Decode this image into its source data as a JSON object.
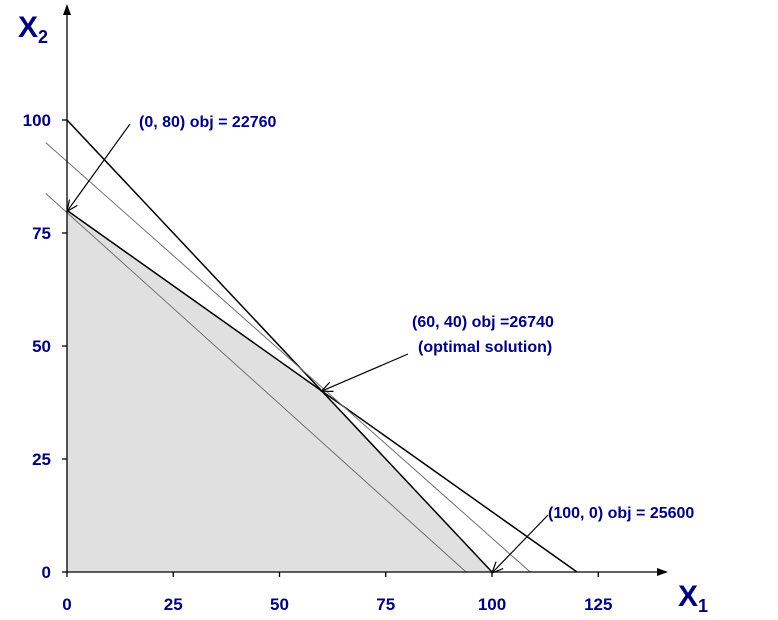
{
  "chart_data": {
    "type": "line",
    "title": "",
    "xlabel": "X",
    "xlabel_sub": "1",
    "ylabel": "X",
    "ylabel_sub": "2",
    "xlim": [
      0,
      125
    ],
    "ylim": [
      0,
      125
    ],
    "x_ticks": [
      "0",
      "25",
      "50",
      "75",
      "100",
      "125"
    ],
    "y_ticks": [
      "0",
      "25",
      "50",
      "75",
      "100"
    ],
    "feasible_region": [
      [
        0,
        0
      ],
      [
        0,
        80
      ],
      [
        60,
        40
      ],
      [
        100,
        0
      ]
    ],
    "constraint_lines": [
      {
        "points": [
          [
            0,
            100
          ],
          [
            100,
            0
          ]
        ]
      },
      {
        "points": [
          [
            0,
            80
          ],
          [
            120,
            0
          ]
        ]
      }
    ],
    "objective_lines": [
      {
        "points": [
          [
            -5,
            83.75
          ],
          [
            93.9,
            0
          ]
        ]
      },
      {
        "points": [
          [
            -5,
            95
          ],
          [
            109,
            0
          ]
        ]
      }
    ],
    "annotations": [
      {
        "text": "(0, 80) obj = 22760",
        "point": [
          0,
          80
        ]
      },
      {
        "text": "(60, 40) obj =26740",
        "text2": "(optimal solution)",
        "point": [
          60,
          40
        ]
      },
      {
        "text": "(100, 0)  obj = 25600",
        "point": [
          100,
          0
        ]
      }
    ],
    "grid": false,
    "legend": "none"
  }
}
